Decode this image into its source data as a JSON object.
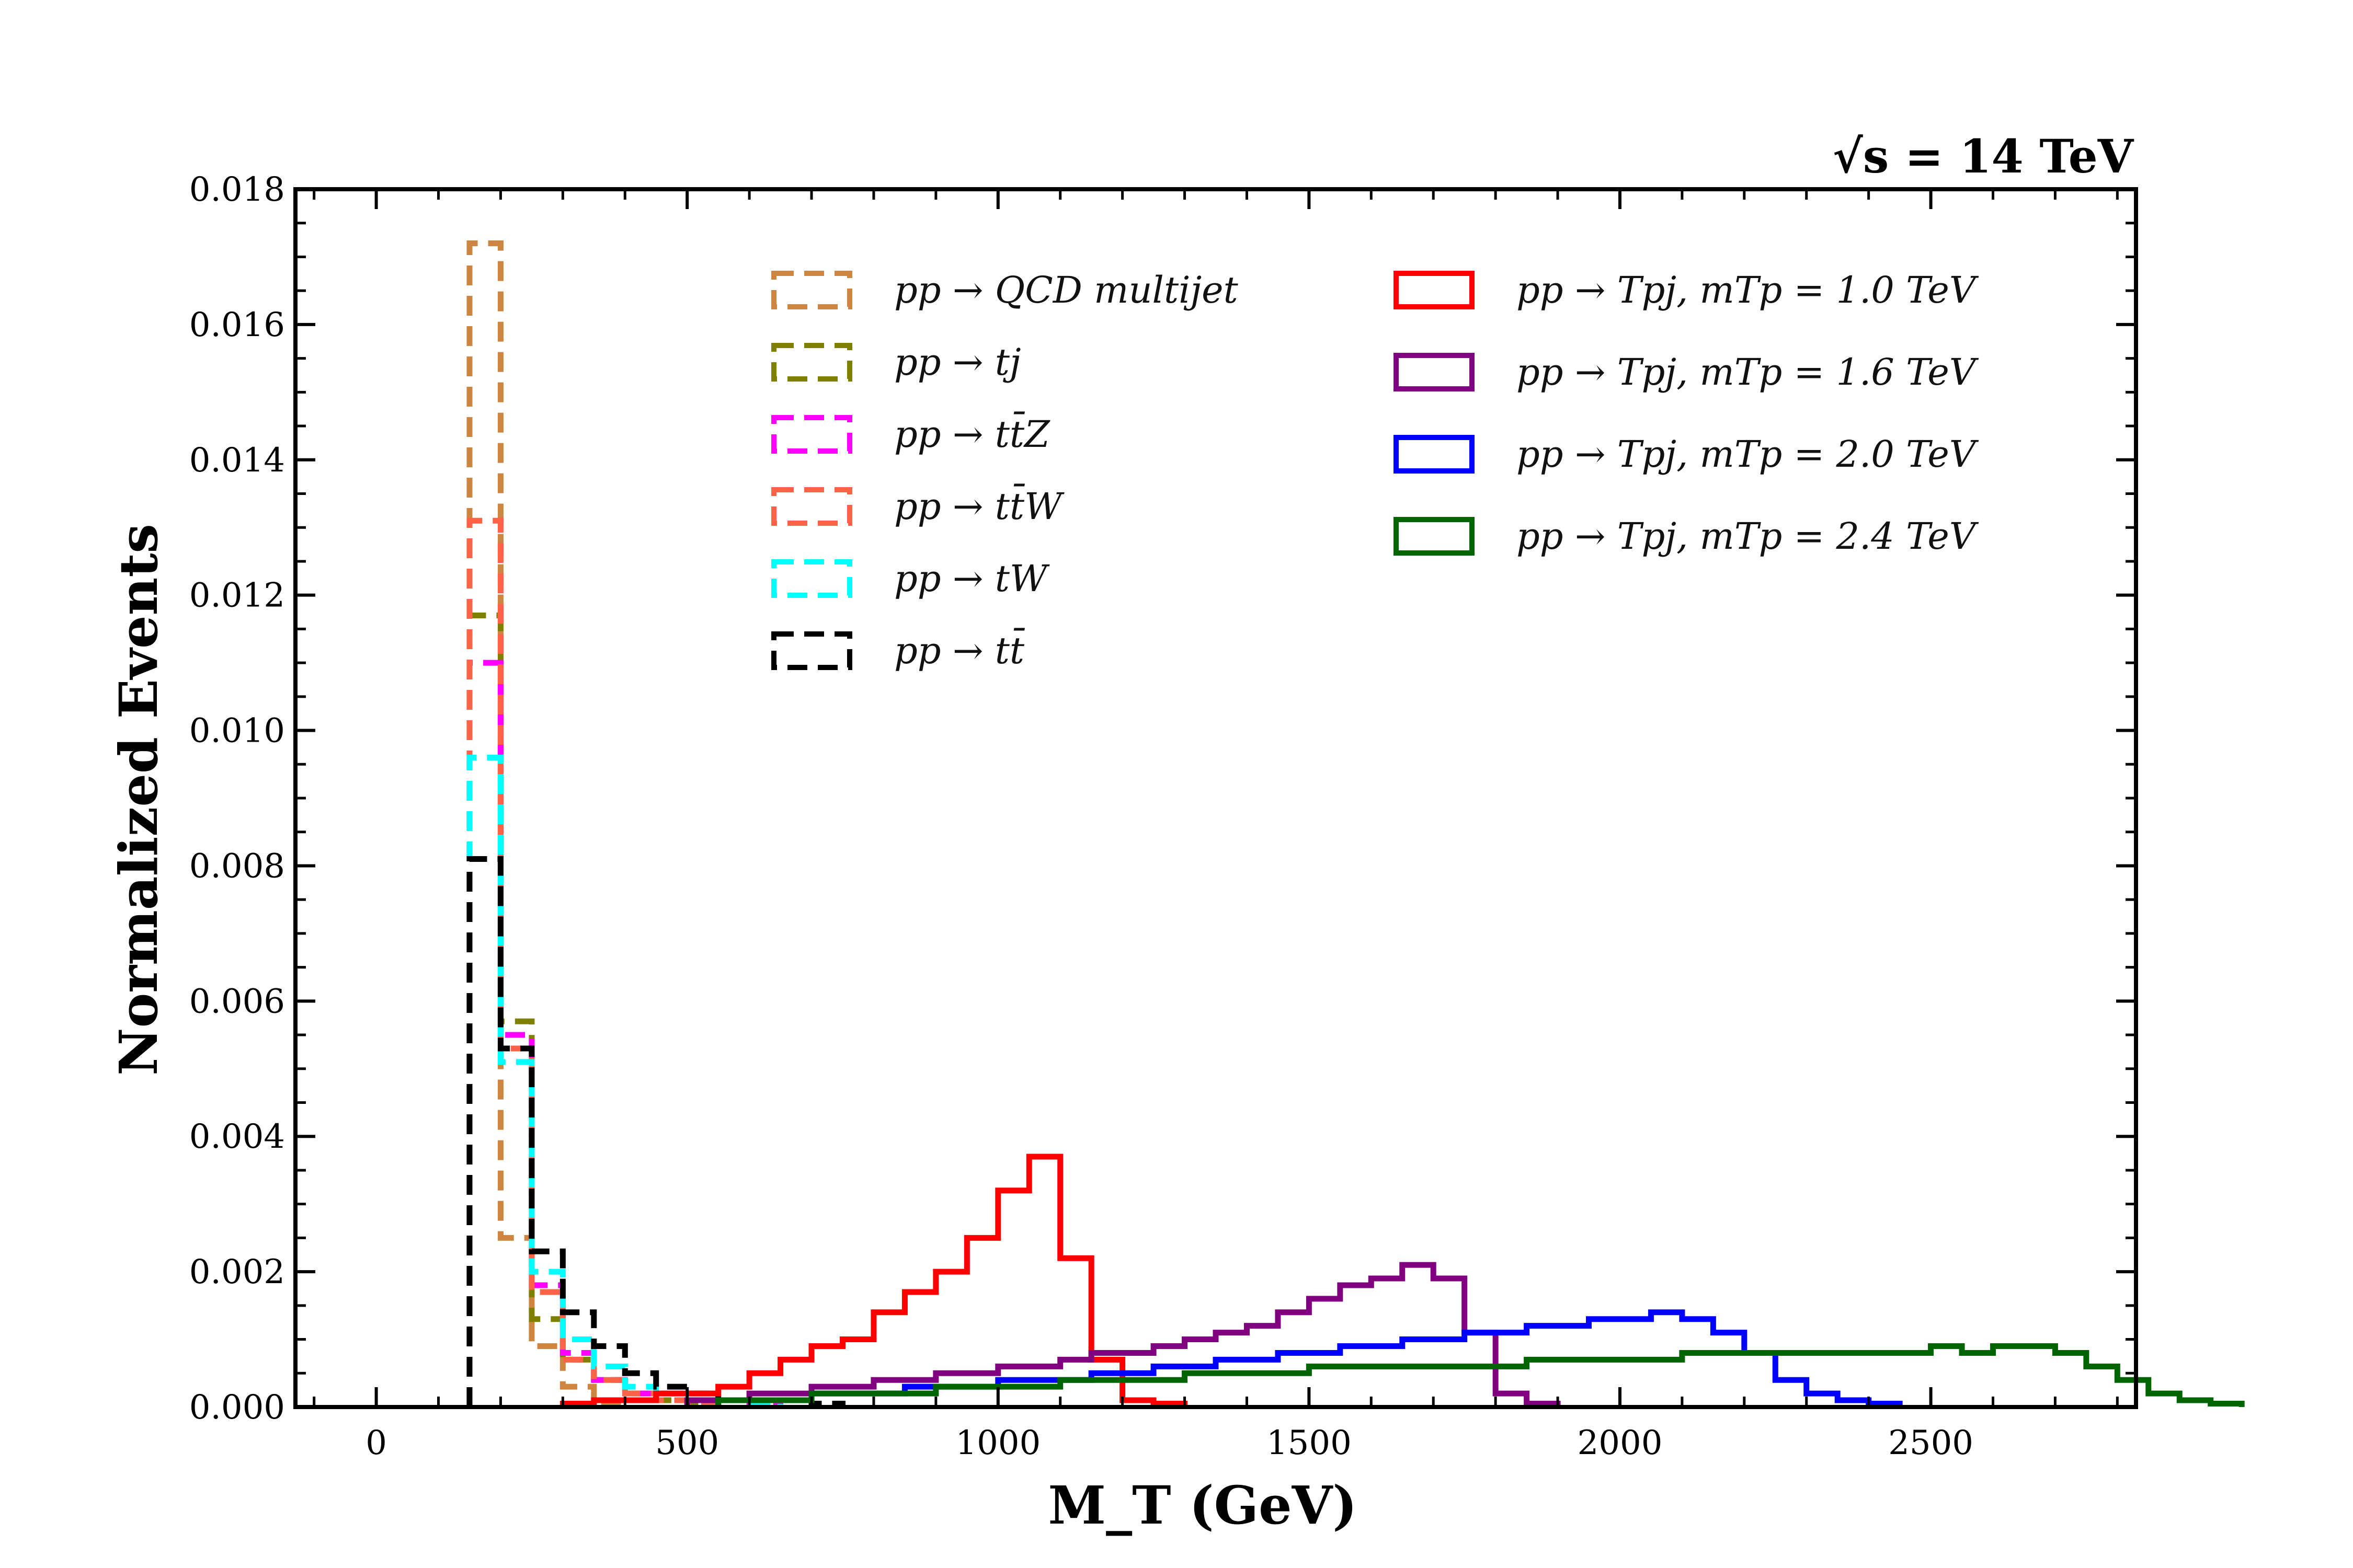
{
  "chart_data": {
    "type": "step-histogram",
    "title": "",
    "annotation": "√s = 14 TeV",
    "xlabel": "M_T (GeV)",
    "ylabel": "Normalized Events",
    "xlim": [
      -130,
      2830
    ],
    "ylim": [
      0,
      0.018
    ],
    "x_ticks": [
      0,
      500,
      1000,
      1500,
      2000,
      2500
    ],
    "y_ticks": [
      0.0,
      0.002,
      0.004,
      0.006,
      0.008,
      0.01,
      0.012,
      0.014,
      0.016,
      0.018
    ],
    "bin_width": 50,
    "series": [
      {
        "name": "pp → QCD multijet",
        "color": "#cd853f",
        "style": "dashed",
        "start": 150,
        "values": [
          0.0172,
          0.0025,
          0.0009,
          0.0003,
          5e-05
        ]
      },
      {
        "name": "pp → tj",
        "color": "#808000",
        "style": "dashed",
        "start": 150,
        "values": [
          0.0117,
          0.0057,
          0.0013,
          0.0007,
          0.0004,
          0.0002,
          0.0001,
          5e-05
        ]
      },
      {
        "name": "pp → tt̄Z",
        "color": "#ff00ff",
        "style": "dashed",
        "start": 150,
        "values": [
          0.011,
          0.0055,
          0.0018,
          0.0008,
          0.0004,
          0.0002,
          0.0002,
          0.0001,
          0.0001,
          5e-05
        ]
      },
      {
        "name": "pp → tt̄W",
        "color": "#ff6347",
        "style": "dashed",
        "start": 150,
        "values": [
          0.0131,
          0.0053,
          0.0017,
          0.0007,
          0.0004,
          0.0002,
          0.0001,
          5e-05
        ]
      },
      {
        "name": "pp → tW",
        "color": "#00ffff",
        "style": "dashed",
        "start": 150,
        "values": [
          0.0096,
          0.0051,
          0.002,
          0.001,
          0.0006,
          0.0003,
          0.0002,
          0.0001,
          0.0001,
          5e-05
        ]
      },
      {
        "name": "pp → tt̄",
        "color": "#000000",
        "style": "dashed",
        "start": 150,
        "values": [
          0.0081,
          0.0053,
          0.0023,
          0.0014,
          0.0009,
          0.0005,
          0.0003,
          0.0002,
          0.0001,
          0.0001,
          0.0001,
          5e-05
        ]
      },
      {
        "name": "pp → Tpj, mTp = 1.0 TeV",
        "color": "#ff0000",
        "style": "solid",
        "start": 300,
        "values": [
          5e-05,
          0.0001,
          0.0001,
          0.0002,
          0.0002,
          0.0003,
          0.0005,
          0.0007,
          0.0009,
          0.001,
          0.0014,
          0.0017,
          0.002,
          0.0025,
          0.0032,
          0.0037,
          0.0022,
          0.0007,
          0.0001,
          5e-05
        ]
      },
      {
        "name": "pp → Tpj, mTp = 1.6 TeV",
        "color": "#800080",
        "style": "solid",
        "start": 500,
        "values": [
          0.0001,
          0.0001,
          0.0002,
          0.0002,
          0.0003,
          0.0003,
          0.0004,
          0.0004,
          0.0005,
          0.0005,
          0.0006,
          0.0006,
          0.0007,
          0.0008,
          0.0008,
          0.0009,
          0.001,
          0.0011,
          0.0012,
          0.0014,
          0.0016,
          0.0018,
          0.0019,
          0.0021,
          0.0019,
          0.0011,
          0.0002,
          5e-05
        ]
      },
      {
        "name": "pp → Tpj, mTp = 2.0 TeV",
        "color": "#0000ff",
        "style": "solid",
        "start": 550,
        "values": [
          0.0001,
          0.0001,
          0.0001,
          0.0002,
          0.0002,
          0.0002,
          0.0003,
          0.0003,
          0.0003,
          0.0004,
          0.0004,
          0.0004,
          0.0005,
          0.0005,
          0.0006,
          0.0006,
          0.0007,
          0.0007,
          0.0008,
          0.0008,
          0.0009,
          0.0009,
          0.001,
          0.001,
          0.0011,
          0.0011,
          0.0012,
          0.0012,
          0.0013,
          0.0013,
          0.0014,
          0.0013,
          0.0011,
          0.0008,
          0.0004,
          0.0002,
          0.0001,
          5e-05
        ]
      },
      {
        "name": "pp → Tpj, mTp = 2.4 TeV",
        "color": "#006400",
        "style": "solid",
        "start": 550,
        "values": [
          0.0001,
          0.0001,
          0.0001,
          0.0002,
          0.0002,
          0.0002,
          0.0002,
          0.0003,
          0.0003,
          0.0003,
          0.0003,
          0.0004,
          0.0004,
          0.0004,
          0.0004,
          0.0005,
          0.0005,
          0.0005,
          0.0005,
          0.0006,
          0.0006,
          0.0006,
          0.0006,
          0.0006,
          0.0006,
          0.0006,
          0.0007,
          0.0007,
          0.0007,
          0.0007,
          0.0007,
          0.0008,
          0.0008,
          0.0008,
          0.0008,
          0.0008,
          0.0008,
          0.0008,
          0.0008,
          0.0009,
          0.0008,
          0.0009,
          0.0009,
          0.0008,
          0.0006,
          0.0004,
          0.0002,
          0.0001,
          5e-05
        ]
      }
    ]
  },
  "legend_left": [
    {
      "text": "pp → QCD multijet",
      "color": "#cd853f"
    },
    {
      "text": "pp → tj",
      "color": "#808000"
    },
    {
      "text": "pp → tt̄Z",
      "color": "#ff00ff"
    },
    {
      "text": "pp → tt̄W",
      "color": "#ff6347"
    },
    {
      "text": "pp → tW",
      "color": "#00ffff"
    },
    {
      "text": "pp → tt̄",
      "color": "#000000"
    }
  ],
  "legend_right": [
    {
      "text": "pp → Tpj, mTp = 1.0 TeV",
      "color": "#ff0000"
    },
    {
      "text": "pp → Tpj, mTp = 1.6 TeV",
      "color": "#800080"
    },
    {
      "text": "pp → Tpj, mTp = 2.0 TeV",
      "color": "#0000ff"
    },
    {
      "text": "pp → Tpj, mTp = 2.4 TeV",
      "color": "#006400"
    }
  ]
}
